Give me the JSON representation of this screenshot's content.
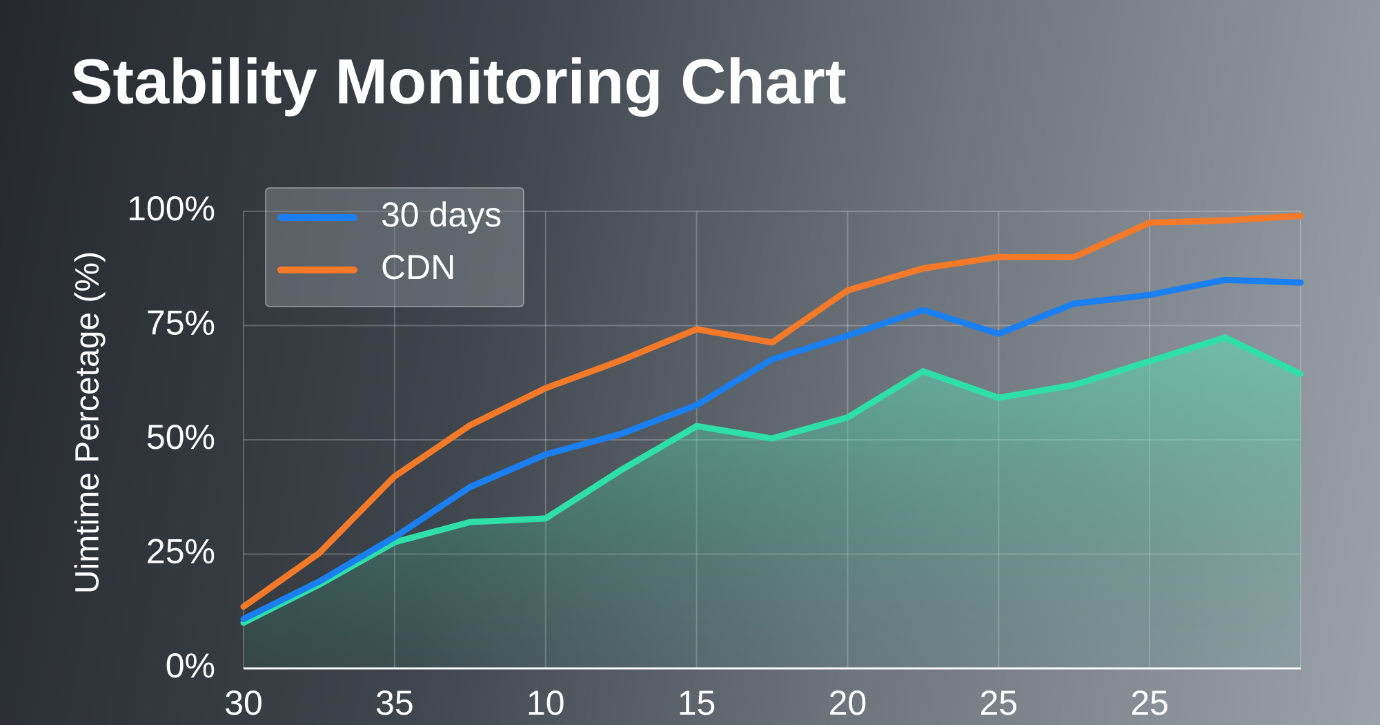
{
  "chart_data": {
    "type": "line",
    "title": "Stability Monitoring Chart",
    "y_label": "Uimtime Percetage (%)",
    "categories": [
      "30",
      null,
      "35",
      null,
      "10",
      null,
      "15",
      null,
      "20",
      null,
      "25",
      null,
      "25",
      null,
      null
    ],
    "series": [
      {
        "name": "30 days",
        "color": "#1a7ff0",
        "values": [
          10.8,
          19,
          28.7,
          39.7,
          46.8,
          51.3,
          57.6,
          67.6,
          72.8,
          78.4,
          73.2,
          79.8,
          81.7,
          85,
          84.4
        ]
      },
      {
        "name": "CDN",
        "color": "#f47a2a",
        "values": [
          13.5,
          25.2,
          42,
          53.2,
          61.3,
          67.4,
          74.2,
          71.3,
          82.7,
          87.5,
          90,
          90,
          97.5,
          98,
          99
        ]
      },
      {
        "color": "#2ee0a8",
        "area": true,
        "values": [
          10,
          18.3,
          27.6,
          32,
          32.8,
          43.4,
          53,
          50.3,
          54.9,
          65,
          59.2,
          62,
          67.2,
          72.4,
          64.4
        ]
      }
    ],
    "ylim": [
      0,
      100
    ],
    "yticks": [
      {
        "value": 0,
        "label": "0%"
      },
      {
        "value": 25,
        "label": "25%"
      },
      {
        "value": 50,
        "label": "50%"
      },
      {
        "value": 75,
        "label": "75%"
      },
      {
        "value": 100,
        "label": "100%"
      }
    ],
    "grid": true,
    "legend": "upper left"
  }
}
